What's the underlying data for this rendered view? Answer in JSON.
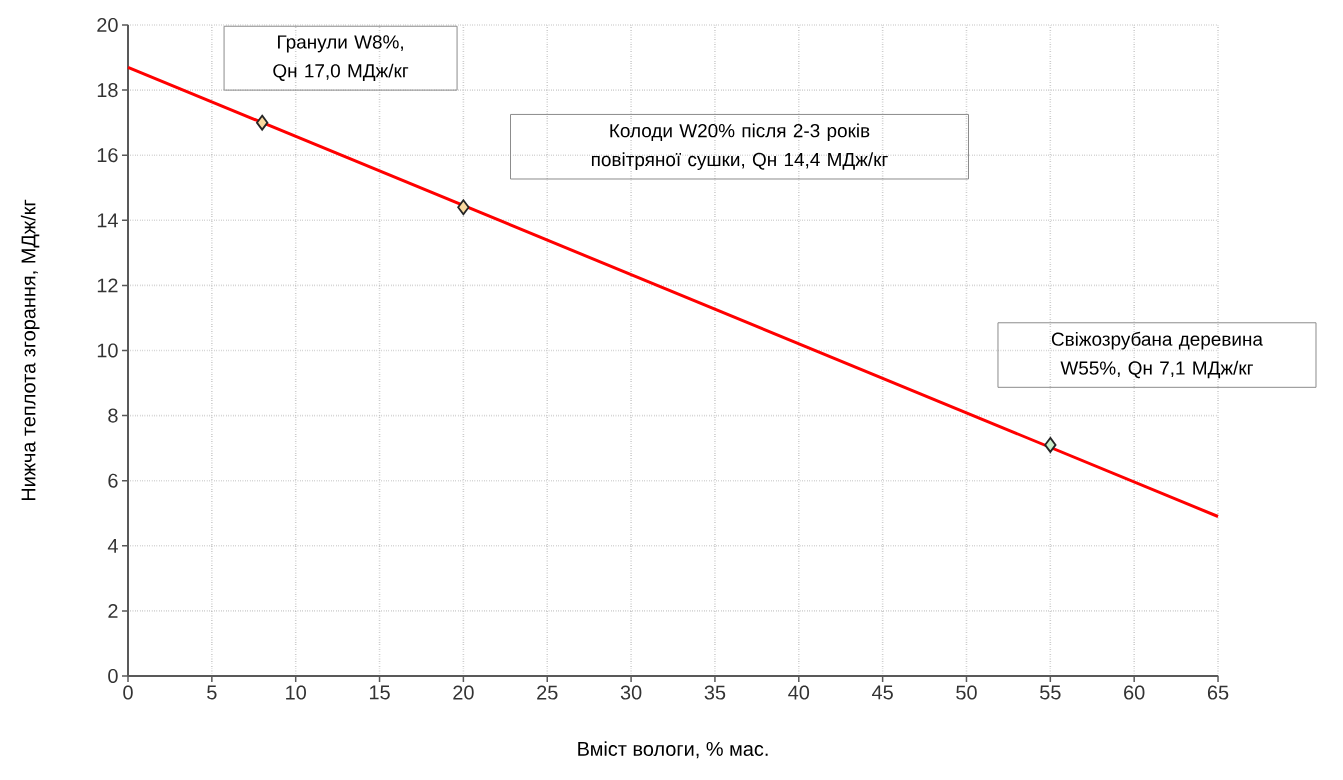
{
  "chart_data": {
    "type": "line",
    "xlabel": "Вміст вологи, % мас.",
    "ylabel": "Нижча теплота згорання, МДж/кг",
    "xlim": [
      0,
      65
    ],
    "ylim": [
      0,
      20
    ],
    "xticks": [
      0,
      5,
      10,
      15,
      20,
      25,
      30,
      35,
      40,
      45,
      50,
      55,
      60,
      65
    ],
    "yticks": [
      0,
      2,
      4,
      6,
      8,
      10,
      12,
      14,
      16,
      18,
      20
    ],
    "grid": true,
    "series": [
      {
        "color": "#ff0000",
        "x": [
          0,
          65
        ],
        "values": [
          18.7,
          4.9
        ],
        "marker": "none"
      },
      {
        "type": "scatter",
        "marker": "diamond",
        "x": [
          8,
          20,
          55
        ],
        "values": [
          17.0,
          14.4,
          7.1
        ],
        "colors": [
          "#f9d9a0",
          "#f9d9a0",
          "#ccf0cc"
        ]
      }
    ],
    "annotations": [
      "Гранули W8%, Qн 17,0 МДж/кг",
      "Колоди W20% після 2-3 років повітряної сушки, Qн 14,4 МДж/кг",
      "Свіжозрубана деревина W55%, Qн 7,1 МДж/кг"
    ]
  }
}
